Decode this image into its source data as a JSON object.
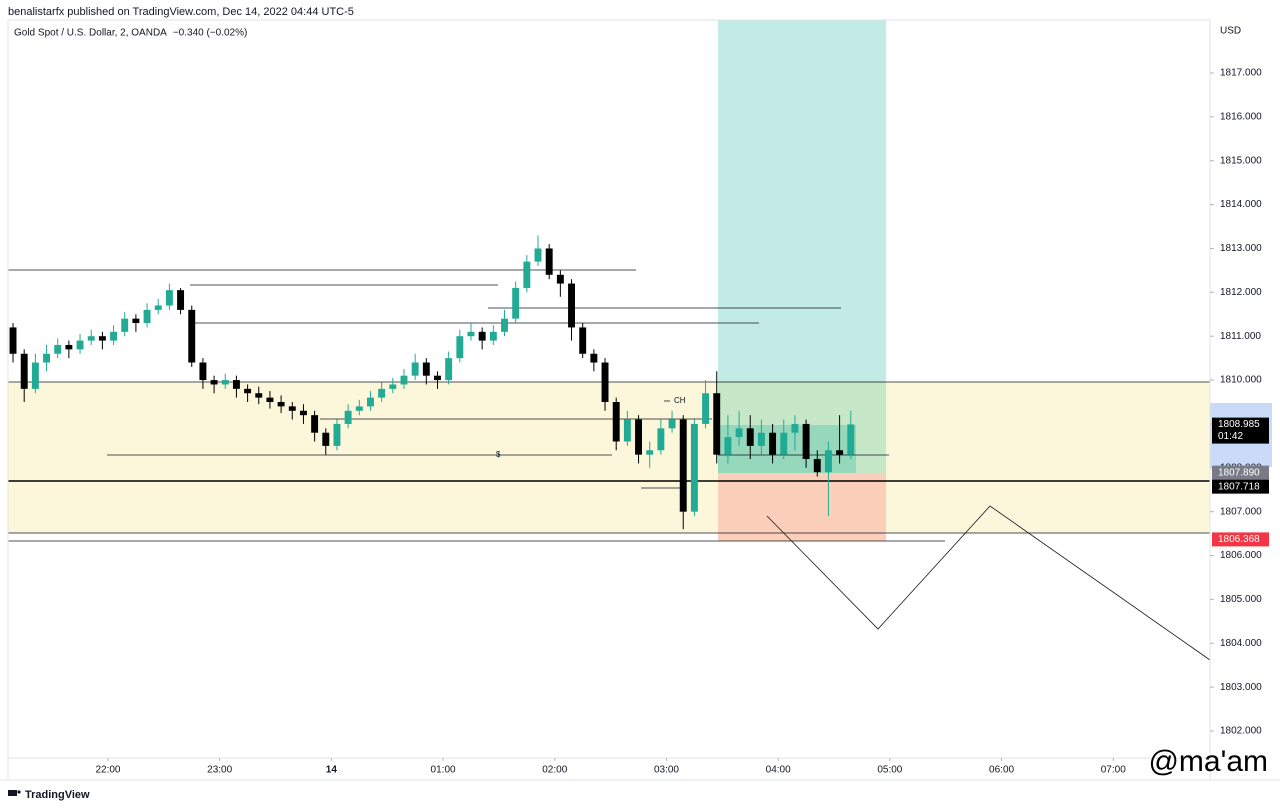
{
  "chart_data": {
    "type": "candlestick",
    "header": "benalistarfx published on TradingView.com, Dec 14, 2022 04:44 UTC-5",
    "title": "Gold Spot / U.S. Dollar, 2, OANDA",
    "change": "−0.340 (−0.02%)",
    "y_axis_label": "USD",
    "annotations": [
      "CH",
      "$"
    ],
    "footer": "TradingView",
    "watermark": "@ma'am",
    "up_color": "#22ab94",
    "down_color": "#000000",
    "xlim": [
      21.105,
      31.866
    ],
    "ylim": [
      1801.385,
      1818.208
    ],
    "xticks": [
      {
        "value": 22,
        "label": "22:00"
      },
      {
        "value": 23,
        "label": "23:00"
      },
      {
        "value": 24,
        "label": "14"
      },
      {
        "value": 25,
        "label": "01:00"
      },
      {
        "value": 26,
        "label": "02:00"
      },
      {
        "value": 27,
        "label": "03:00"
      },
      {
        "value": 28,
        "label": "04:00"
      },
      {
        "value": 29,
        "label": "05:00"
      },
      {
        "value": 30,
        "label": "06:00"
      },
      {
        "value": 31,
        "label": "07:00"
      }
    ],
    "yticks": [
      {
        "value": 1802,
        "label": "1802.000"
      },
      {
        "value": 1803,
        "label": "1803.000"
      },
      {
        "value": 1804,
        "label": "1804.000"
      },
      {
        "value": 1805,
        "label": "1805.000"
      },
      {
        "value": 1806,
        "label": "1806.000"
      },
      {
        "value": 1807,
        "label": "1807.000"
      },
      {
        "value": 1808,
        "label": "1808.000"
      },
      {
        "value": 1809,
        "label": "1809.000"
      },
      {
        "value": 1810,
        "label": "1810.000"
      },
      {
        "value": 1811,
        "label": "1811.000"
      },
      {
        "value": 1812,
        "label": "1812.000"
      },
      {
        "value": 1813,
        "label": "1813.000"
      },
      {
        "value": 1814,
        "label": "1814.000"
      },
      {
        "value": 1815,
        "label": "1815.000"
      },
      {
        "value": 1816,
        "label": "1816.000"
      },
      {
        "value": 1817,
        "label": "1817.000"
      }
    ],
    "price_labels": [
      1808.985,
      {
        "value": 1807.89,
        "label": "1807.890"
      },
      1807.718,
      1806.368
    ],
    "price_label_colors": [
      "#000000",
      "#787b86",
      "#000000",
      "#f23645"
    ],
    "countdown": "01:42",
    "x": [
      21.15,
      21.25,
      21.35,
      21.45,
      21.55,
      21.65,
      21.75,
      21.85,
      21.95,
      22.05,
      22.15,
      22.25,
      22.35,
      22.45,
      22.55,
      22.65,
      22.75,
      22.85,
      22.95,
      23.05,
      23.15,
      23.25,
      23.35,
      23.45,
      23.55,
      23.65,
      23.75,
      23.85,
      23.95,
      24.05,
      24.15,
      24.25,
      24.35,
      24.45,
      24.55,
      24.65,
      24.75,
      24.85,
      24.95,
      25.05,
      25.15,
      25.25,
      25.35,
      25.45,
      25.55,
      25.65,
      25.75,
      25.85,
      25.95,
      26.05,
      26.15,
      26.25,
      26.35,
      26.45,
      26.55,
      26.65,
      26.75,
      26.85,
      26.95,
      27.05,
      27.15,
      27.25,
      27.35,
      27.45,
      27.55,
      27.65,
      27.75,
      27.85,
      27.95,
      28.05,
      28.15,
      28.25,
      28.35,
      28.45,
      28.55,
      28.65
    ],
    "open": [
      1811.2,
      1810.6,
      1809.8,
      1810.4,
      1810.6,
      1810.8,
      1810.7,
      1810.9,
      1811.0,
      1810.9,
      1811.1,
      1811.4,
      1811.3,
      1811.6,
      1811.7,
      1812.05,
      1811.6,
      1810.4,
      1810.0,
      1809.9,
      1810.0,
      1809.8,
      1809.7,
      1809.6,
      1809.5,
      1809.4,
      1809.3,
      1809.2,
      1808.8,
      1808.5,
      1809.0,
      1809.3,
      1809.4,
      1809.6,
      1809.8,
      1809.9,
      1810.1,
      1810.4,
      1810.1,
      1810.0,
      1810.5,
      1811.0,
      1811.1,
      1810.9,
      1811.1,
      1811.4,
      1812.1,
      1812.7,
      1813.0,
      1812.4,
      1812.2,
      1811.2,
      1810.6,
      1810.4,
      1809.5,
      1808.6,
      1809.1,
      1808.3,
      1808.4,
      1808.9,
      1809.1,
      1807.0,
      1809.0,
      1809.7,
      1808.3,
      1808.7,
      1808.9,
      1808.5,
      1808.8,
      1808.3,
      1808.8,
      1809.0,
      1808.2,
      1807.9,
      1808.4,
      1808.3
    ],
    "high": [
      1811.3,
      1810.7,
      1810.6,
      1810.8,
      1810.95,
      1810.9,
      1811.05,
      1811.15,
      1811.1,
      1811.25,
      1811.55,
      1811.5,
      1811.75,
      1811.85,
      1812.2,
      1812.1,
      1811.7,
      1810.5,
      1810.1,
      1810.15,
      1810.1,
      1809.9,
      1809.85,
      1809.75,
      1809.65,
      1809.5,
      1809.45,
      1809.3,
      1808.9,
      1809.1,
      1809.45,
      1809.55,
      1809.75,
      1809.95,
      1810.05,
      1810.25,
      1810.6,
      1810.5,
      1810.2,
      1810.65,
      1811.15,
      1811.3,
      1811.2,
      1811.25,
      1811.6,
      1812.25,
      1812.85,
      1813.3,
      1813.1,
      1812.5,
      1812.3,
      1811.3,
      1810.7,
      1810.5,
      1809.6,
      1809.3,
      1809.2,
      1808.6,
      1809.1,
      1809.3,
      1809.2,
      1809.1,
      1810.0,
      1810.2,
      1809.2,
      1809.3,
      1809.2,
      1809.1,
      1809.0,
      1809.1,
      1809.2,
      1809.1,
      1808.4,
      1808.6,
      1809.2,
      1809.3
    ],
    "low": [
      1810.4,
      1809.5,
      1809.7,
      1810.2,
      1810.5,
      1810.5,
      1810.6,
      1810.8,
      1810.7,
      1810.8,
      1811.0,
      1811.1,
      1811.2,
      1811.5,
      1811.6,
      1811.5,
      1810.3,
      1809.8,
      1809.7,
      1809.8,
      1809.6,
      1809.5,
      1809.45,
      1809.35,
      1809.25,
      1809.1,
      1809.0,
      1808.6,
      1808.3,
      1808.4,
      1808.9,
      1809.2,
      1809.3,
      1809.5,
      1809.7,
      1809.8,
      1810.0,
      1809.9,
      1809.8,
      1809.9,
      1810.4,
      1810.9,
      1810.7,
      1810.8,
      1811.0,
      1811.3,
      1812.0,
      1812.6,
      1812.3,
      1811.9,
      1810.9,
      1810.5,
      1810.2,
      1809.3,
      1808.4,
      1808.5,
      1808.1,
      1808.0,
      1808.3,
      1808.8,
      1806.6,
      1806.9,
      1808.9,
      1808.1,
      1808.1,
      1808.5,
      1808.2,
      1808.3,
      1808.1,
      1808.2,
      1808.4,
      1808.0,
      1807.8,
      1806.9,
      1808.1,
      1808.2
    ],
    "close": [
      1810.6,
      1809.8,
      1810.4,
      1810.6,
      1810.8,
      1810.7,
      1810.9,
      1811.0,
      1810.9,
      1811.1,
      1811.4,
      1811.3,
      1811.6,
      1811.7,
      1812.05,
      1811.6,
      1810.4,
      1810.0,
      1809.9,
      1810.0,
      1809.8,
      1809.7,
      1809.6,
      1809.5,
      1809.4,
      1809.3,
      1809.2,
      1808.8,
      1808.5,
      1809.0,
      1809.3,
      1809.4,
      1809.6,
      1809.8,
      1809.9,
      1810.1,
      1810.4,
      1810.1,
      1810.0,
      1810.5,
      1811.0,
      1811.1,
      1810.9,
      1811.1,
      1811.4,
      1812.1,
      1812.7,
      1813.0,
      1812.4,
      1812.2,
      1811.2,
      1810.6,
      1810.4,
      1809.5,
      1808.6,
      1809.1,
      1808.3,
      1808.4,
      1808.9,
      1809.1,
      1807.0,
      1809.0,
      1809.7,
      1808.3,
      1808.7,
      1808.9,
      1808.5,
      1808.8,
      1808.3,
      1808.8,
      1809.0,
      1808.2,
      1807.9,
      1808.4,
      1808.3,
      1808.99
    ]
  }
}
